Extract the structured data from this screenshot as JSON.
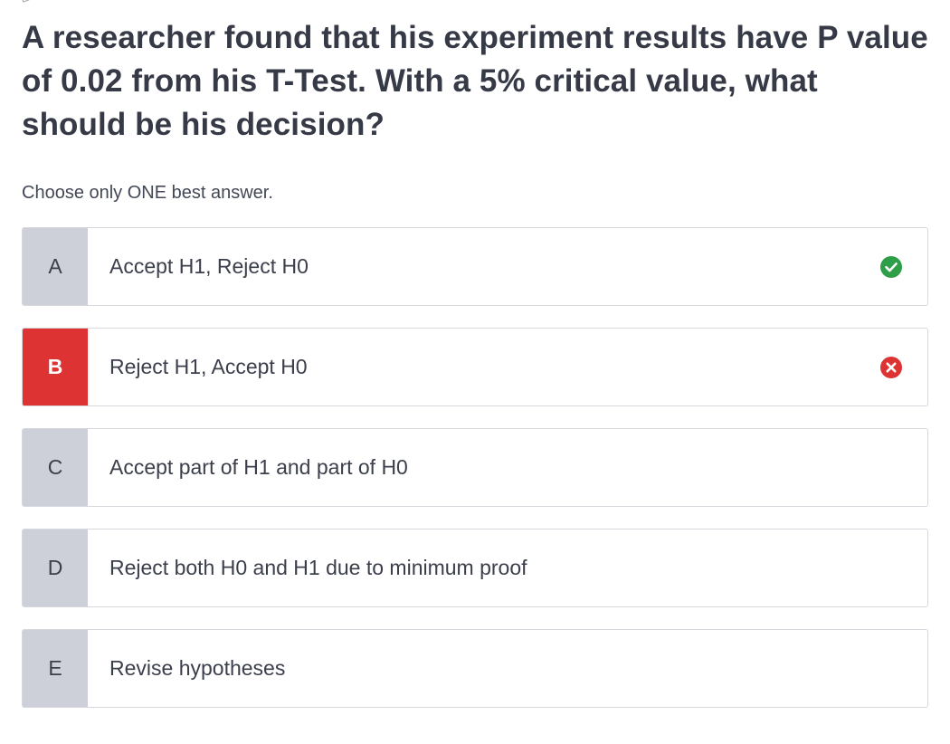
{
  "question": {
    "text": "A researcher found that his experiment results have P value of 0.02 from his T-Test. With a 5% critical value, what should be his decision?",
    "instruction": "Choose only ONE best answer."
  },
  "options": [
    {
      "letter": "A",
      "label": "Accept H1, Reject H0",
      "state": "correct",
      "status_icon": "check-circle-icon"
    },
    {
      "letter": "B",
      "label": "Reject H1, Accept H0",
      "state": "incorrect-selected",
      "status_icon": "x-circle-icon"
    },
    {
      "letter": "C",
      "label": "Accept part of H1 and part of H0",
      "state": "neutral"
    },
    {
      "letter": "D",
      "label": "Reject both H0 and H1 due to minimum proof",
      "state": "neutral"
    },
    {
      "letter": "E",
      "label": "Revise hypotheses",
      "state": "neutral"
    }
  ],
  "colors": {
    "correct": "#2e9e48",
    "incorrect": "#dd3333",
    "letter_bg": "#cdd0d8",
    "text": "#363a46"
  }
}
